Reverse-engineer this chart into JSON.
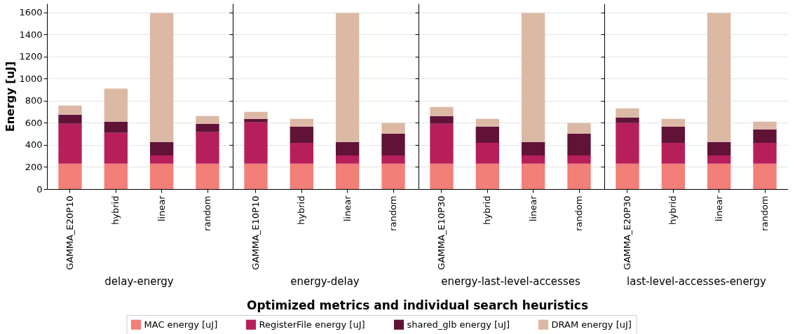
{
  "chart_data": [
    {
      "type": "bar",
      "stacked": true,
      "categories": [
        "GAMMA_E20P10",
        "hybrid",
        "linear",
        "random"
      ],
      "xlabel": "delay-energy",
      "ylabel": "Energy [uJ]",
      "ylim": [
        0,
        1680
      ],
      "yticks": [
        0,
        200,
        400,
        600,
        800,
        1000,
        1200,
        1400,
        1600
      ],
      "grid": "y",
      "legend": "bottom",
      "annotations": [
        "Optimized metrics and individual search heuristics"
      ],
      "series": [
        {
          "name": "MAC energy [uJ]",
          "color": "#f27f78",
          "values": [
            230,
            230,
            230,
            230
          ]
        },
        {
          "name": "RegisterFile energy [uJ]",
          "color": "#b71f5a",
          "values": [
            361,
            278,
            75,
            285
          ]
        },
        {
          "name": "shared_glb energy [uJ]",
          "color": "#611337",
          "values": [
            83,
            102,
            121,
            76
          ]
        },
        {
          "name": "DRAM energy [uJ]",
          "color": "#dbb9a5",
          "values": [
            82,
            299,
            1169,
            70
          ]
        }
      ]
    },
    {
      "type": "bar",
      "stacked": true,
      "categories": [
        "GAMMA_E10P10",
        "hybrid",
        "linear",
        "random"
      ],
      "xlabel": "energy-delay",
      "ylim": [
        0,
        1680
      ],
      "yticks": [
        0,
        200,
        400,
        600,
        800,
        1000,
        1200,
        1400,
        1600
      ],
      "grid": "y",
      "tick_labels": "x",
      "series": [
        {
          "color": "#f27f78",
          "values": [
            230,
            230,
            230,
            230
          ]
        },
        {
          "color": "#b71f5a",
          "values": [
            374,
            189,
            75,
            75
          ]
        },
        {
          "color": "#611337",
          "values": [
            32,
            147,
            121,
            197
          ]
        },
        {
          "color": "#dbb9a5",
          "values": [
            63,
            70,
            1169,
            95
          ]
        }
      ]
    },
    {
      "type": "bar",
      "stacked": true,
      "categories": [
        "GAMMA_E10P30",
        "hybrid",
        "linear",
        "random"
      ],
      "xlabel": "energy-last-level-accesses",
      "ylim": [
        0,
        1680
      ],
      "yticks": [
        0,
        200,
        400,
        600,
        800,
        1000,
        1200,
        1400,
        1600
      ],
      "grid": "y",
      "tick_labels": "x",
      "series": [
        {
          "color": "#f27f78",
          "values": [
            230,
            230,
            230,
            230
          ]
        },
        {
          "color": "#b71f5a",
          "values": [
            361,
            189,
            75,
            75
          ]
        },
        {
          "color": "#611337",
          "values": [
            70,
            147,
            121,
            197
          ]
        },
        {
          "color": "#dbb9a5",
          "values": [
            83,
            70,
            1169,
            95
          ]
        }
      ]
    },
    {
      "type": "bar",
      "stacked": true,
      "categories": [
        "GAMMA_E20P30",
        "hybrid",
        "linear",
        "random"
      ],
      "xlabel": "last-level-accesses-energy",
      "ylim": [
        0,
        1680
      ],
      "yticks": [
        0,
        200,
        400,
        600,
        800,
        1000,
        1200,
        1400,
        1600
      ],
      "grid": "y",
      "tick_labels": "x",
      "series": [
        {
          "color": "#f27f78",
          "values": [
            230,
            230,
            230,
            230
          ]
        },
        {
          "color": "#b71f5a",
          "values": [
            367,
            189,
            75,
            189
          ]
        },
        {
          "color": "#611337",
          "values": [
            51,
            147,
            121,
            121
          ]
        },
        {
          "color": "#dbb9a5",
          "values": [
            83,
            70,
            1169,
            70
          ]
        }
      ]
    }
  ]
}
